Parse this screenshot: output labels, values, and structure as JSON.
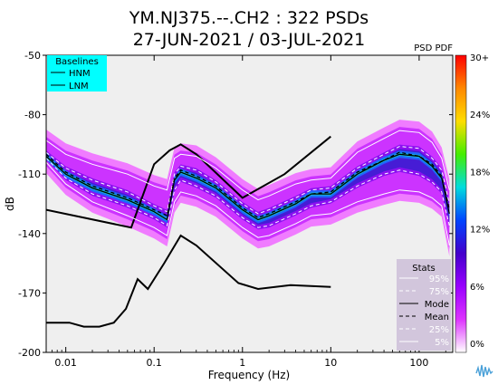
{
  "chart_data": {
    "type": "heatmap",
    "title": "YM.NJ375.--.CH2 : 322 PSDs",
    "subtitle": "27-JUN-2021 / 03-JUL-2021",
    "xlabel": "Frequency (Hz)",
    "ylabel": "dB",
    "x_scale": "log",
    "xlim": [
      0.006,
      240
    ],
    "ylim": [
      -200,
      -50
    ],
    "x_ticks": [
      {
        "value": 0.01,
        "label": "0.01"
      },
      {
        "value": 0.1,
        "label": "0.1"
      },
      {
        "value": 1,
        "label": "1"
      },
      {
        "value": 10,
        "label": "10"
      },
      {
        "value": 100,
        "label": "100"
      }
    ],
    "y_ticks": [
      {
        "value": -50,
        "label": "-50"
      },
      {
        "value": -80,
        "label": "-80"
      },
      {
        "value": -110,
        "label": "-110"
      },
      {
        "value": -140,
        "label": "-140"
      },
      {
        "value": -170,
        "label": "-170"
      },
      {
        "value": -200,
        "label": "-200"
      }
    ],
    "colorbar": {
      "title": "PSD PDF",
      "labels": [
        "30+",
        "24%",
        "18%",
        "12%",
        "6%",
        "0%"
      ],
      "colors": [
        "#ff0000",
        "#ff8800",
        "#ffdd00",
        "#44ee00",
        "#00dddd",
        "#0044ff",
        "#4400cc",
        "#9900ff",
        "#dd33ff",
        "#ffffff"
      ]
    },
    "baselines": {
      "title": "Baselines",
      "items": [
        "HNM",
        "LNM"
      ],
      "HNM": {
        "x": [
          0.006,
          0.055,
          0.1,
          0.15,
          0.2,
          0.3,
          1.0,
          3.0,
          10.0
        ],
        "y": [
          -128,
          -137,
          -105,
          -98,
          -95,
          -100,
          -122,
          -110,
          -91
        ]
      },
      "LNM": {
        "x": [
          0.006,
          0.011,
          0.016,
          0.024,
          0.035,
          0.048,
          0.065,
          0.085,
          0.13,
          0.2,
          0.3,
          0.9,
          1.5,
          3.5,
          10.0
        ],
        "y": [
          -185,
          -185,
          -187,
          -187,
          -185,
          -178,
          -163,
          -168,
          -155,
          -141,
          -146,
          -165,
          -168,
          -166,
          -167
        ]
      }
    },
    "stats": {
      "title": "Stats",
      "items": [
        "95%",
        "75%",
        "Mode",
        "Mean",
        "25%",
        "5%"
      ]
    },
    "series": [
      {
        "name": "95%",
        "x": [
          0.006,
          0.01,
          0.02,
          0.05,
          0.1,
          0.14,
          0.17,
          0.2,
          0.3,
          0.5,
          1,
          1.5,
          2,
          4,
          6,
          10,
          20,
          40,
          60,
          100,
          140,
          180,
          220
        ],
        "y": [
          -93,
          -100,
          -105,
          -110,
          -116,
          -118,
          -102,
          -100,
          -101,
          -107,
          -118,
          -123,
          -121,
          -115,
          -113,
          -112,
          -99,
          -92,
          -88,
          -89,
          -94,
          -102,
          -118
        ]
      },
      {
        "name": "75%",
        "x": [
          0.006,
          0.01,
          0.02,
          0.05,
          0.1,
          0.14,
          0.17,
          0.2,
          0.3,
          0.5,
          1,
          1.5,
          2,
          4,
          6,
          10,
          20,
          40,
          60,
          100,
          140,
          180,
          220
        ],
        "y": [
          -99,
          -107,
          -113,
          -119,
          -126,
          -129,
          -110,
          -106,
          -108,
          -114,
          -125,
          -130,
          -128,
          -122,
          -118,
          -117,
          -107,
          -100,
          -96,
          -97,
          -102,
          -108,
          -125
        ]
      },
      {
        "name": "Mode",
        "x": [
          0.006,
          0.01,
          0.02,
          0.05,
          0.1,
          0.14,
          0.17,
          0.2,
          0.3,
          0.5,
          1,
          1.5,
          2,
          4,
          6,
          10,
          20,
          40,
          60,
          100,
          140,
          180,
          220
        ],
        "y": [
          -101,
          -110,
          -117,
          -123,
          -129,
          -133,
          -113,
          -109,
          -112,
          -117,
          -128,
          -133,
          -131,
          -125,
          -120,
          -120,
          -110,
          -103,
          -100,
          -101,
          -106,
          -112,
          -130
        ]
      },
      {
        "name": "Mean",
        "x": [
          0.006,
          0.01,
          0.02,
          0.05,
          0.1,
          0.14,
          0.17,
          0.2,
          0.3,
          0.5,
          1,
          1.5,
          2,
          4,
          6,
          10,
          20,
          40,
          60,
          100,
          140,
          180,
          220
        ],
        "y": [
          -100,
          -109,
          -116,
          -122,
          -128,
          -131,
          -112,
          -108,
          -111,
          -116,
          -127,
          -132,
          -130,
          -124,
          -120,
          -119,
          -109,
          -103,
          -99,
          -101,
          -105,
          -111,
          -128
        ]
      },
      {
        "name": "25%",
        "x": [
          0.006,
          0.01,
          0.02,
          0.05,
          0.1,
          0.14,
          0.17,
          0.2,
          0.3,
          0.5,
          1,
          1.5,
          2,
          4,
          6,
          10,
          20,
          40,
          60,
          100,
          140,
          180,
          220
        ],
        "y": [
          -102,
          -112,
          -120,
          -126,
          -132,
          -136,
          -118,
          -113,
          -116,
          -121,
          -132,
          -137,
          -136,
          -130,
          -126,
          -124,
          -116,
          -110,
          -108,
          -110,
          -114,
          -119,
          -136
        ]
      },
      {
        "name": "5%",
        "x": [
          0.006,
          0.01,
          0.02,
          0.05,
          0.1,
          0.14,
          0.17,
          0.2,
          0.3,
          0.5,
          1,
          1.5,
          2,
          4,
          6,
          10,
          20,
          40,
          60,
          100,
          140,
          180,
          220
        ],
        "y": [
          -104,
          -115,
          -124,
          -131,
          -137,
          -141,
          -124,
          -119,
          -121,
          -126,
          -137,
          -142,
          -141,
          -135,
          -131,
          -130,
          -124,
          -120,
          -118,
          -119,
          -122,
          -126,
          -146
        ]
      }
    ]
  }
}
